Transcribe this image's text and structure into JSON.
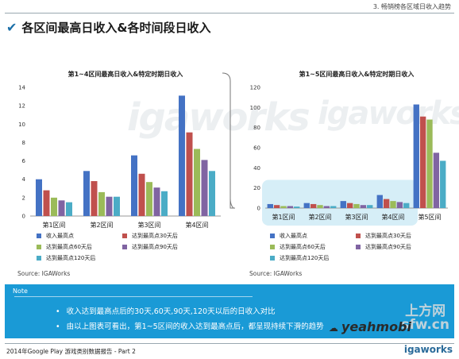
{
  "header": {
    "section": "3. 畅销榜各区域日收入趋势"
  },
  "page_title": "各区间最高日收入&各时间段日收入",
  "colors": {
    "peak": "#4472c4",
    "d30": "#c0504d",
    "d60": "#9bbb59",
    "d90": "#8064a2",
    "d120": "#4bacc6",
    "note_bg": "#1a9ad6",
    "highlight": "#d6eef7"
  },
  "chart_data": [
    {
      "type": "bar",
      "title": "第1~4区间最高日收入&特定时期日收入",
      "categories": [
        "第1区间",
        "第2区间",
        "第3区间",
        "第4区间"
      ],
      "ylim": [
        0,
        14
      ],
      "yticks": [
        0,
        2,
        4,
        6,
        8,
        10,
        12,
        14
      ],
      "grid": false,
      "series": [
        {
          "name": "收入最高点",
          "values": [
            4.0,
            4.9,
            6.6,
            13.1
          ]
        },
        {
          "name": "达到最高点30天后",
          "values": [
            2.8,
            3.8,
            4.6,
            9.1
          ]
        },
        {
          "name": "达到最高点60天后",
          "values": [
            2.0,
            2.6,
            3.7,
            7.3
          ]
        },
        {
          "name": "达到最高点90天后",
          "values": [
            1.7,
            2.1,
            3.1,
            6.1
          ]
        },
        {
          "name": "达到最高点120天后",
          "values": [
            1.5,
            2.1,
            2.7,
            4.9
          ]
        }
      ],
      "legend_placement": "bottom",
      "source": "Source: IGAWorks"
    },
    {
      "type": "bar",
      "title": "第1~5区间最高日收入&特定时期日收入",
      "categories": [
        "第1区间",
        "第2区间",
        "第3区间",
        "第4区间",
        "第5区间"
      ],
      "ylim": [
        0,
        120
      ],
      "yticks": [
        0,
        20,
        40,
        60,
        80,
        100,
        120
      ],
      "grid": false,
      "series": [
        {
          "name": "收入最高点",
          "values": [
            4,
            5,
            7,
            13,
            103
          ]
        },
        {
          "name": "达到最高点30天后",
          "values": [
            3,
            4,
            5,
            9,
            91
          ]
        },
        {
          "name": "达到最高点60天后",
          "values": [
            2,
            3,
            4,
            7,
            88
          ]
        },
        {
          "name": "达到最高点90天后",
          "values": [
            2,
            2,
            3,
            6,
            55
          ]
        },
        {
          "name": "达到最高点120天后",
          "values": [
            1.5,
            2,
            3,
            5,
            47
          ]
        }
      ],
      "legend_placement": "bottom",
      "source": "Source: IGAWorks"
    }
  ],
  "watermark": "igaworks",
  "note": {
    "label": "Note",
    "bullets": [
      "收入达到最高点后的30天,60天,90天,120天以后的日收入对比",
      "由以上图表可看出，第1~5区间的收入达到最高点后，都呈现持续下滑的趋势"
    ]
  },
  "footer": {
    "text": "2014年Google Play 游戏类别数据报告 - Part 2",
    "brand": "igaworks"
  },
  "overlay": {
    "stamp_line1": "上方网",
    "stamp_line2": "sfw.cn",
    "handle": "yeahmobi"
  }
}
